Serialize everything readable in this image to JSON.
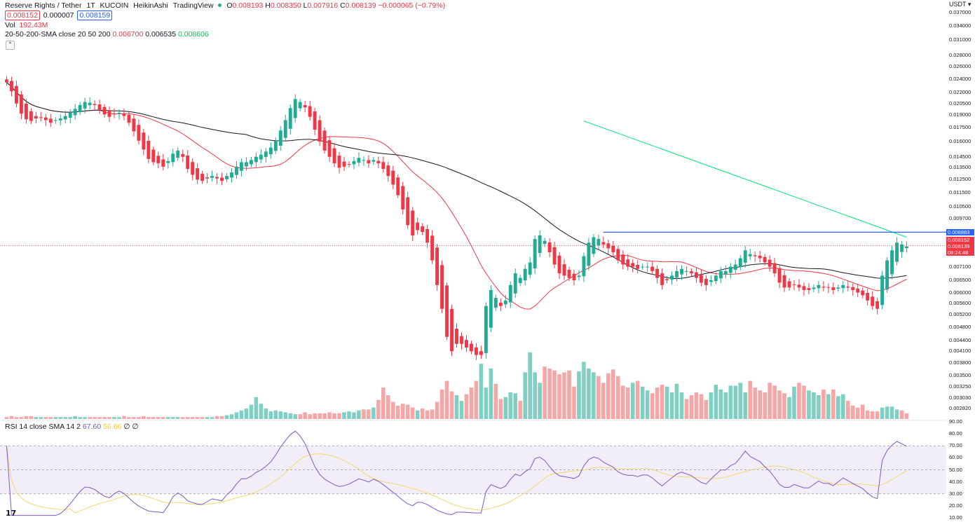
{
  "header": {
    "symbol": "Reserve Rights / Tether",
    "interval": "1T",
    "exchange": "KUCOIN",
    "chart_style": "HeikinAshi",
    "source": "TradingView",
    "ohlc": {
      "o_label": "O",
      "o": "0.008193",
      "h_label": "H",
      "h": "0.008350",
      "l_label": "L",
      "l": "0.007916",
      "c_label": "C",
      "c": "0.008139",
      "change": "−0.000065 (−0.79%)"
    },
    "sell_price": "0.008152",
    "spread": "0.000007",
    "buy_price": "0.008159"
  },
  "indicators": {
    "vol": {
      "label": "Vol",
      "value": "192.43M"
    },
    "sma": {
      "label": "20-50-200-SMA close 20 50 200",
      "v20": "0.006700",
      "v50": "0.006535",
      "v200": "0.008606"
    },
    "rsi": {
      "label": "RSI 14 close SMA 14 2",
      "rsi": "67.60",
      "sma": "56.66",
      "extra1": "∅",
      "extra2": "∅"
    }
  },
  "price_axis": {
    "currency": "USDT",
    "ticks": [
      "0.037000",
      "0.034000",
      "0.031000",
      "0.028000",
      "0.026000",
      "0.024000",
      "0.022000",
      "0.020500",
      "0.019000",
      "0.017500",
      "0.016000",
      "0.014500",
      "0.013500",
      "0.012500",
      "0.011500",
      "0.010500",
      "0.009700",
      "0.007700",
      "0.007100",
      "0.006500",
      "0.006000",
      "0.005600",
      "0.005200",
      "0.004800",
      "0.004400",
      "0.004100",
      "0.003800",
      "0.003500",
      "0.003250",
      "0.003030",
      "0.002820"
    ],
    "tags": {
      "line": "0.008883",
      "bid": "0.008152",
      "last": "0.008139",
      "countdown": "08:24:48"
    }
  },
  "rsi_axis": {
    "ticks": [
      "90.00",
      "80.00",
      "70.00",
      "60.00",
      "50.00",
      "40.00",
      "30.00",
      "20.00",
      "10.00"
    ]
  },
  "colors": {
    "up": "#22ab94",
    "down": "#f23645",
    "vol_up": "#7fcfc3",
    "vol_down": "#f7a6a6",
    "sma20": "#f23645",
    "sma50": "#131722",
    "sma200": "#00e676",
    "rsi": "#7e57c2",
    "rsi_sma": "#f5d76e",
    "hline": "#2962ff"
  },
  "chart_data": {
    "type": "candlestick",
    "style": "HeikinAshi",
    "y_scale": "log",
    "ylim": [
      0.0028,
      0.037
    ],
    "closes": [
      0.0235,
      0.0222,
      0.0205,
      0.0192,
      0.0185,
      0.0183,
      0.0186,
      0.0187,
      0.0184,
      0.0181,
      0.0184,
      0.0186,
      0.0189,
      0.0193,
      0.0198,
      0.0203,
      0.0207,
      0.0206,
      0.0203,
      0.0197,
      0.0191,
      0.0188,
      0.0191,
      0.0193,
      0.0189,
      0.0181,
      0.0171,
      0.0161,
      0.0152,
      0.0143,
      0.014,
      0.0139,
      0.0136,
      0.0141,
      0.0148,
      0.0151,
      0.0145,
      0.0134,
      0.0129,
      0.0125,
      0.0124,
      0.0126,
      0.0128,
      0.0126,
      0.0124,
      0.0128,
      0.0131,
      0.0136,
      0.014,
      0.014,
      0.0142,
      0.0145,
      0.0147,
      0.015,
      0.0154,
      0.0161,
      0.0172,
      0.0184,
      0.0199,
      0.0211,
      0.0207,
      0.02,
      0.0188,
      0.0173,
      0.016,
      0.0151,
      0.0145,
      0.0139,
      0.0135,
      0.0136,
      0.0138,
      0.0141,
      0.0144,
      0.0142,
      0.0139,
      0.0142,
      0.0139,
      0.0134,
      0.0128,
      0.0121,
      0.0113,
      0.0103,
      0.0093,
      0.0087,
      0.009,
      0.0089,
      0.0083,
      0.0074,
      0.0063,
      0.0054,
      0.0045,
      0.0041,
      0.0043,
      0.0043,
      0.0042,
      0.0041,
      0.004,
      0.004,
      0.0055,
      0.0061,
      0.0058,
      0.0055,
      0.0057,
      0.0063,
      0.0068,
      0.0066,
      0.007,
      0.0073,
      0.0085,
      0.0087,
      0.0084,
      0.0078,
      0.0072,
      0.0068,
      0.0067,
      0.0066,
      0.0065,
      0.0067,
      0.0076,
      0.0083,
      0.0086,
      0.0085,
      0.0082,
      0.008,
      0.0078,
      0.0074,
      0.0072,
      0.0071,
      0.0071,
      0.007,
      0.0071,
      0.0071,
      0.0069,
      0.0066,
      0.0063,
      0.0065,
      0.0067,
      0.0069,
      0.007,
      0.0069,
      0.0068,
      0.0066,
      0.0064,
      0.0063,
      0.0065,
      0.0067,
      0.0069,
      0.0069,
      0.0071,
      0.0072,
      0.0075,
      0.0079,
      0.0077,
      0.0076,
      0.0075,
      0.0073,
      0.0071,
      0.0068,
      0.0064,
      0.0062,
      0.0062,
      0.0063,
      0.0062,
      0.0061,
      0.0061,
      0.0062,
      0.0063,
      0.0062,
      0.0062,
      0.0061,
      0.0062,
      0.0063,
      0.0062,
      0.0061,
      0.006,
      0.0059,
      0.0057,
      0.0055,
      0.0054,
      0.0067,
      0.0074,
      0.0079,
      0.0083,
      0.0082,
      0.0081
    ]
  },
  "volume_data": [
    0.02,
    0.03,
    0.02,
    0.02,
    0.03,
    0.03,
    0.02,
    0.02,
    0.02,
    0.02,
    0.02,
    0.02,
    0.02,
    0.02,
    0.03,
    0.02,
    0.02,
    0.02,
    0.02,
    0.02,
    0.02,
    0.02,
    0.02,
    0.02,
    0.03,
    0.02,
    0.02,
    0.02,
    0.03,
    0.02,
    0.02,
    0.02,
    0.02,
    0.02,
    0.02,
    0.02,
    0.02,
    0.02,
    0.02,
    0.02,
    0.02,
    0.02,
    0.02,
    0.03,
    0.03,
    0.04,
    0.05,
    0.07,
    0.09,
    0.11,
    0.15,
    0.23,
    0.16,
    0.11,
    0.08,
    0.09,
    0.08,
    0.07,
    0.06,
    0.05,
    0.05,
    0.07,
    0.05,
    0.06,
    0.06,
    0.06,
    0.07,
    0.06,
    0.06,
    0.07,
    0.08,
    0.07,
    0.09,
    0.1,
    0.1,
    0.12,
    0.2,
    0.33,
    0.25,
    0.18,
    0.14,
    0.16,
    0.15,
    0.12,
    0.09,
    0.11,
    0.09,
    0.1,
    0.18,
    0.31,
    0.4,
    0.29,
    0.25,
    0.19,
    0.26,
    0.33,
    0.4,
    0.58,
    0.33,
    0.53,
    0.37,
    0.21,
    0.23,
    0.28,
    0.27,
    0.19,
    0.49,
    0.7,
    0.49,
    0.38,
    0.55,
    0.53,
    0.51,
    0.47,
    0.49,
    0.51,
    0.34,
    0.5,
    0.6,
    0.53,
    0.49,
    0.45,
    0.38,
    0.48,
    0.52,
    0.45,
    0.35,
    0.33,
    0.38,
    0.4,
    0.34,
    0.3,
    0.27,
    0.33,
    0.36,
    0.34,
    0.28,
    0.37,
    0.28,
    0.21,
    0.25,
    0.28,
    0.26,
    0.2,
    0.28,
    0.36,
    0.31,
    0.28,
    0.35,
    0.35,
    0.38,
    0.28,
    0.4,
    0.33,
    0.3,
    0.28,
    0.38,
    0.35,
    0.3,
    0.27,
    0.23,
    0.34,
    0.38,
    0.35,
    0.3,
    0.28,
    0.25,
    0.31,
    0.26,
    0.31,
    0.24,
    0.26,
    0.19,
    0.14,
    0.12,
    0.15,
    0.09,
    0.08,
    0.08,
    0.12,
    0.13,
    0.13,
    0.1,
    0.09,
    0.06,
    0.05,
    0.08,
    0.13,
    0.18,
    0.55,
    0.75,
    0.6,
    0.58,
    0.65,
    0.55,
    0.5,
    0.48,
    0.42,
    0.35
  ]
}
